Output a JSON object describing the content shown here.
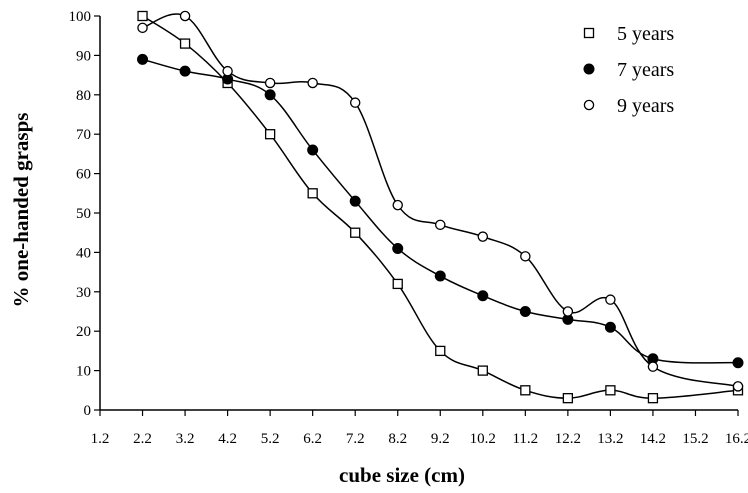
{
  "chart_data": {
    "type": "line",
    "title": "",
    "xlabel": "cube size (cm)",
    "ylabel": "% one-handed grasps",
    "x_ticks": [
      "1.2",
      "2.2",
      "3.2",
      "4.2",
      "5.2",
      "6.2",
      "7.2",
      "8.2",
      "9.2",
      "10.2",
      "11.2",
      "12.2",
      "13.2",
      "14.2",
      "15.2",
      "16.2"
    ],
    "ylim": [
      0,
      100
    ],
    "y_ticks": [
      0,
      10,
      20,
      30,
      40,
      50,
      60,
      70,
      80,
      90,
      100
    ],
    "grid": false,
    "legend_position": "top-right",
    "series": [
      {
        "name": "5 years",
        "marker": "open-square",
        "x": [
          2.2,
          3.2,
          4.2,
          5.2,
          6.2,
          7.2,
          8.2,
          9.2,
          10.2,
          11.2,
          12.2,
          13.2,
          14.2,
          16.2
        ],
        "y": [
          100,
          93,
          83,
          70,
          55,
          45,
          32,
          15,
          10,
          5,
          3,
          5,
          3,
          5
        ]
      },
      {
        "name": "7 years",
        "marker": "filled-circle",
        "x": [
          2.2,
          3.2,
          4.2,
          5.2,
          6.2,
          7.2,
          8.2,
          9.2,
          10.2,
          11.2,
          12.2,
          13.2,
          14.2,
          16.2
        ],
        "y": [
          89,
          86,
          84,
          80,
          66,
          53,
          41,
          34,
          29,
          25,
          23,
          21,
          13,
          12
        ]
      },
      {
        "name": "9 years",
        "marker": "open-circle",
        "x": [
          2.2,
          3.2,
          4.2,
          5.2,
          6.2,
          7.2,
          8.2,
          9.2,
          10.2,
          11.2,
          12.2,
          13.2,
          14.2,
          16.2
        ],
        "y": [
          97,
          100,
          86,
          83,
          83,
          78,
          52,
          47,
          44,
          39,
          25,
          28,
          11,
          6
        ]
      }
    ]
  }
}
